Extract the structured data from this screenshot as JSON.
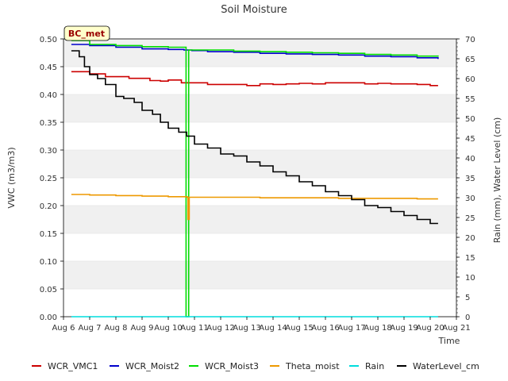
{
  "chart_data": {
    "type": "line",
    "title": "Soil Moisture",
    "xlabel": "Time",
    "ylabel": "VWC (m3/m3)",
    "y2label": "Rain (mm), Water Level (cm)",
    "annotation": "BC_met",
    "x_ticks": [
      "Aug 6",
      "Aug 7",
      "Aug 8",
      "Aug 9",
      "Aug 10",
      "Aug 11",
      "Aug 12",
      "Aug 13",
      "Aug 14",
      "Aug 15",
      "Aug 16",
      "Aug 17",
      "Aug 18",
      "Aug 19",
      "Aug 20",
      "Aug 21"
    ],
    "xlim": [
      6,
      21
    ],
    "ylim": [
      0,
      0.5
    ],
    "y_ticks": [
      "0.00",
      "0.05",
      "0.10",
      "0.15",
      "0.20",
      "0.25",
      "0.30",
      "0.35",
      "0.40",
      "0.45",
      "0.50"
    ],
    "y2lim": [
      0,
      70
    ],
    "y2_ticks": [
      "0",
      "5",
      "10",
      "15",
      "20",
      "25",
      "30",
      "35",
      "40",
      "45",
      "50",
      "55",
      "60",
      "65",
      "70"
    ],
    "grid": "banded",
    "legend_position": "bottom",
    "series": [
      {
        "name": "WCR_VMC1",
        "color": "#cc0000",
        "axis": "left",
        "points": [
          [
            6.3,
            0.441
          ],
          [
            7.0,
            0.437
          ],
          [
            7.6,
            0.432
          ],
          [
            8.5,
            0.429
          ],
          [
            9.3,
            0.425
          ],
          [
            9.7,
            0.424
          ],
          [
            10.0,
            0.426
          ],
          [
            10.5,
            0.421
          ],
          [
            11.0,
            0.421
          ],
          [
            11.5,
            0.418
          ],
          [
            12.5,
            0.418
          ],
          [
            13.0,
            0.416
          ],
          [
            13.5,
            0.419
          ],
          [
            14.0,
            0.418
          ],
          [
            14.5,
            0.419
          ],
          [
            15.0,
            0.42
          ],
          [
            15.5,
            0.419
          ],
          [
            16.0,
            0.421
          ],
          [
            17.0,
            0.421
          ],
          [
            17.5,
            0.419
          ],
          [
            18.0,
            0.42
          ],
          [
            18.5,
            0.419
          ],
          [
            19.0,
            0.419
          ],
          [
            19.5,
            0.418
          ],
          [
            20.0,
            0.416
          ],
          [
            20.3,
            0.416
          ]
        ]
      },
      {
        "name": "WCR_Moist2",
        "color": "#0000cc",
        "axis": "left",
        "points": [
          [
            6.3,
            0.49
          ],
          [
            7.0,
            0.488
          ],
          [
            8.0,
            0.485
          ],
          [
            9.0,
            0.482
          ],
          [
            10.0,
            0.481
          ],
          [
            10.6,
            0.48
          ],
          [
            10.9,
            0.479
          ],
          [
            11.5,
            0.477
          ],
          [
            12.5,
            0.476
          ],
          [
            13.5,
            0.474
          ],
          [
            14.5,
            0.473
          ],
          [
            15.5,
            0.472
          ],
          [
            16.5,
            0.471
          ],
          [
            17.5,
            0.469
          ],
          [
            18.5,
            0.468
          ],
          [
            19.5,
            0.466
          ],
          [
            20.3,
            0.464
          ]
        ]
      },
      {
        "name": "WCR_Moist3",
        "color": "#00dd00",
        "axis": "left",
        "points": [
          [
            6.3,
            0.497
          ],
          [
            7.0,
            0.49
          ],
          [
            8.0,
            0.488
          ],
          [
            9.0,
            0.486
          ],
          [
            10.0,
            0.485
          ],
          [
            10.65,
            0.485
          ],
          [
            10.68,
            0.0
          ],
          [
            10.75,
            0.0
          ],
          [
            10.78,
            0.48
          ],
          [
            11.5,
            0.48
          ],
          [
            12.5,
            0.478
          ],
          [
            13.5,
            0.477
          ],
          [
            14.5,
            0.476
          ],
          [
            15.5,
            0.475
          ],
          [
            16.5,
            0.474
          ],
          [
            17.5,
            0.472
          ],
          [
            18.5,
            0.471
          ],
          [
            19.5,
            0.469
          ],
          [
            20.3,
            0.468
          ]
        ]
      },
      {
        "name": "Theta_moist",
        "color": "#ee9900",
        "axis": "left",
        "points": [
          [
            6.3,
            0.22
          ],
          [
            7.0,
            0.219
          ],
          [
            8.0,
            0.218
          ],
          [
            9.0,
            0.217
          ],
          [
            10.0,
            0.216
          ],
          [
            10.5,
            0.216
          ],
          [
            10.72,
            0.215
          ],
          [
            10.75,
            0.175
          ],
          [
            10.8,
            0.215
          ],
          [
            11.5,
            0.215
          ],
          [
            12.5,
            0.215
          ],
          [
            13.5,
            0.214
          ],
          [
            14.5,
            0.214
          ],
          [
            15.5,
            0.214
          ],
          [
            16.5,
            0.213
          ],
          [
            17.5,
            0.213
          ],
          [
            18.5,
            0.213
          ],
          [
            19.5,
            0.212
          ],
          [
            20.3,
            0.212
          ]
        ]
      },
      {
        "name": "Rain",
        "color": "#00dddd",
        "axis": "right",
        "points": [
          [
            6.3,
            0
          ],
          [
            20.3,
            0
          ]
        ]
      },
      {
        "name": "WaterLevel_cm",
        "color": "#000000",
        "axis": "right",
        "points": [
          [
            6.3,
            67
          ],
          [
            6.6,
            65.5
          ],
          [
            6.8,
            63
          ],
          [
            7.0,
            61
          ],
          [
            7.3,
            60
          ],
          [
            7.6,
            58.5
          ],
          [
            8.0,
            55.5
          ],
          [
            8.3,
            55
          ],
          [
            8.7,
            54
          ],
          [
            9.0,
            52
          ],
          [
            9.4,
            51
          ],
          [
            9.7,
            49
          ],
          [
            10.0,
            47.5
          ],
          [
            10.4,
            46.5
          ],
          [
            10.7,
            45.5
          ],
          [
            11.0,
            43.5
          ],
          [
            11.5,
            42.5
          ],
          [
            12.0,
            41
          ],
          [
            12.5,
            40.5
          ],
          [
            13.0,
            39
          ],
          [
            13.5,
            38
          ],
          [
            14.0,
            36.5
          ],
          [
            14.5,
            35.5
          ],
          [
            15.0,
            34
          ],
          [
            15.5,
            33
          ],
          [
            16.0,
            31.5
          ],
          [
            16.5,
            30.5
          ],
          [
            17.0,
            29.5
          ],
          [
            17.5,
            28
          ],
          [
            18.0,
            27.5
          ],
          [
            18.5,
            26.5
          ],
          [
            19.0,
            25.5
          ],
          [
            19.5,
            24.5
          ],
          [
            20.0,
            23.5
          ],
          [
            20.3,
            23.5
          ]
        ]
      }
    ]
  }
}
